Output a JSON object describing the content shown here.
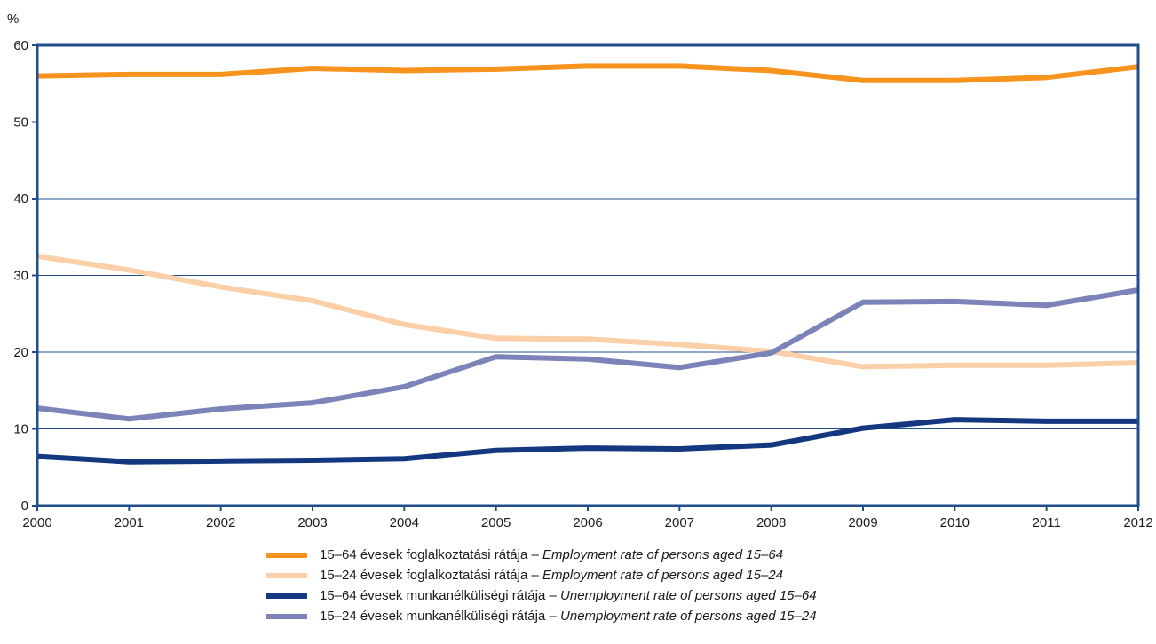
{
  "chart_data": {
    "type": "line",
    "ylabel": "%",
    "xlabel": "",
    "ylim": [
      0,
      60
    ],
    "yticks": [
      0,
      10,
      20,
      30,
      40,
      50,
      60
    ],
    "grid": "horizontal",
    "legend_position": "bottom",
    "x": [
      "2000",
      "2001",
      "2002",
      "2003",
      "2004",
      "2005",
      "2006",
      "2007",
      "2008",
      "2009",
      "2010",
      "2011",
      "2012"
    ],
    "series": [
      {
        "hu": "15–64 évesek foglalkoztatási rátája",
        "en": "Employment rate of persons aged 15–64",
        "color": "#f7941d",
        "values": [
          56.0,
          56.2,
          56.2,
          57.0,
          56.7,
          56.9,
          57.3,
          57.3,
          56.7,
          55.4,
          55.4,
          55.8,
          57.2
        ]
      },
      {
        "hu": "15–24 évesek foglalkoztatási rátája",
        "en": "Employment rate of persons aged 15–24",
        "color": "#fbd0a8",
        "values": [
          32.5,
          30.7,
          28.5,
          26.7,
          23.6,
          21.8,
          21.7,
          21.0,
          20.1,
          18.1,
          18.3,
          18.3,
          18.6
        ]
      },
      {
        "hu": "15–64 évesek munkanélküliségi rátája",
        "en": "Unemployment rate of persons aged 15–64",
        "color": "#14387f",
        "values": [
          6.4,
          5.7,
          5.8,
          5.9,
          6.1,
          7.2,
          7.5,
          7.4,
          7.9,
          10.1,
          11.2,
          11.0,
          11.0
        ]
      },
      {
        "hu": "15–24 évesek munkanélküliségi rátája",
        "en": "Unemployment rate of persons aged 15–24",
        "color": "#7b83b9",
        "values": [
          12.7,
          11.3,
          12.6,
          13.4,
          15.5,
          19.4,
          19.1,
          18.0,
          19.9,
          26.5,
          26.6,
          26.1,
          28.1
        ]
      }
    ]
  }
}
